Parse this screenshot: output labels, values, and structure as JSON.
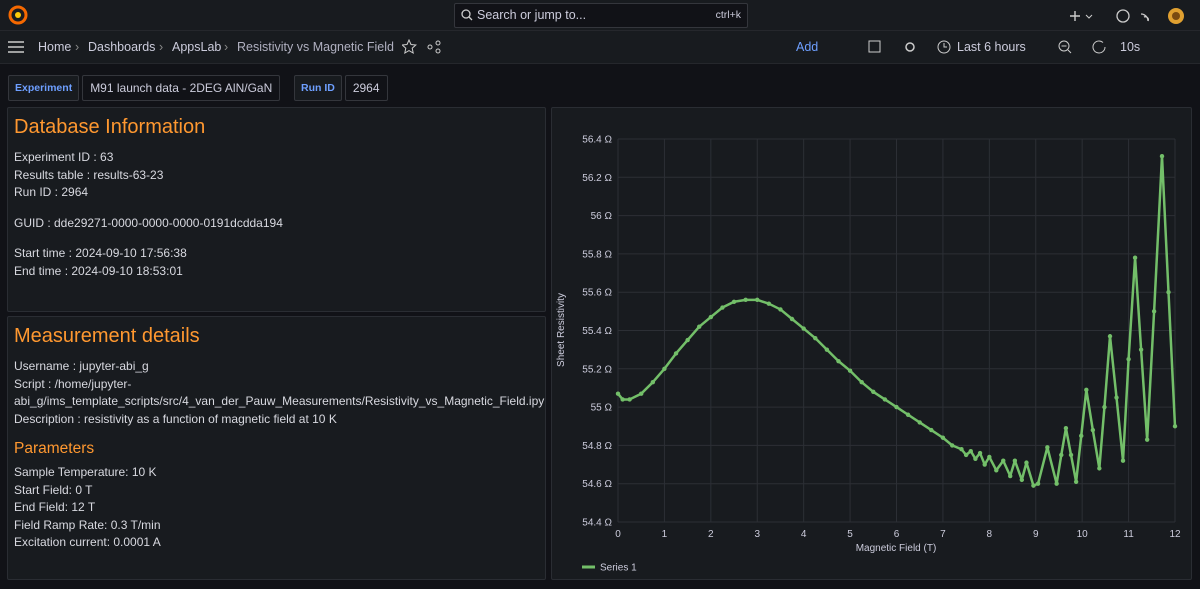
{
  "topbar": {
    "search": "Search or jump to...",
    "shortcut": "ctrl+k"
  },
  "breadcrumb": [
    "Home",
    "Dashboards",
    "AppsLab",
    "Resistivity vs Magnetic Field"
  ],
  "toolbar": {
    "add": "Add",
    "time_range": "Last 6 hours",
    "refresh": "10s"
  },
  "variables": [
    {
      "label": "Experiment",
      "value": "M91 launch data - 2DEG AlN/GaN"
    },
    {
      "label": "Run ID",
      "value": "2964"
    }
  ],
  "database_panel": {
    "title": "Database Information",
    "groups": [
      [
        "Experiment ID : 63",
        "Results table : results-63-23",
        "Run ID : 2964"
      ],
      [
        "GUID : dde29271-0000-0000-0000-0191dcdda194"
      ],
      [
        "Start time : 2024-09-10 17:56:38",
        "End time : 2024-09-10 18:53:01"
      ]
    ]
  },
  "measurement_panel": {
    "title": "Measurement details",
    "lines": [
      "Username : jupyter-abi_g",
      "Script : /home/jupyter-abi_g/ims_template_scripts/src/4_van_der_Pauw_Measurements/Resistivity_vs_Magnetic_Field.ipy",
      "Description : resistivity as a function of magnetic field at 10 K"
    ],
    "parameters_title": "Parameters",
    "parameters": [
      "Sample Temperature: 10 K",
      "Start Field: 0 T",
      "End Field: 12 T",
      "Field Ramp Rate: 0.3 T/min",
      "Excitation current: 0.0001 A"
    ]
  },
  "chart_data": {
    "type": "line",
    "x_label": "Magnetic Field (T)",
    "y_label": "Sheet Resistivity",
    "x": [
      0,
      0.1,
      0.25,
      0.5,
      0.75,
      1,
      1.25,
      1.5,
      1.75,
      2,
      2.25,
      2.5,
      2.75,
      3,
      3.25,
      3.5,
      3.75,
      4,
      4.25,
      4.5,
      4.75,
      5,
      5.25,
      5.5,
      5.75,
      6,
      6.25,
      6.5,
      6.75,
      7,
      7.2,
      7.4,
      7.5,
      7.6,
      7.7,
      7.8,
      7.9,
      8,
      8.15,
      8.3,
      8.45,
      8.55,
      8.7,
      8.8,
      8.95,
      9.05,
      9.25,
      9.45,
      9.55,
      9.65,
      9.76,
      9.87,
      9.98,
      10.09,
      10.23,
      10.37,
      10.48,
      10.6,
      10.74,
      10.88,
      11,
      11.14,
      11.27,
      11.4,
      11.55,
      11.72,
      11.86,
      12
    ],
    "series": [
      {
        "name": "Series 1",
        "color": "#73bf69",
        "values": [
          55.07,
          55.04,
          55.04,
          55.07,
          55.13,
          55.2,
          55.28,
          55.35,
          55.42,
          55.47,
          55.52,
          55.55,
          55.56,
          55.56,
          55.54,
          55.51,
          55.46,
          55.41,
          55.36,
          55.3,
          55.24,
          55.19,
          55.13,
          55.08,
          55.04,
          55.0,
          54.96,
          54.92,
          54.88,
          54.84,
          54.8,
          54.78,
          54.75,
          54.77,
          54.73,
          54.76,
          54.7,
          54.74,
          54.67,
          54.72,
          54.64,
          54.72,
          54.62,
          54.71,
          54.59,
          54.6,
          54.79,
          54.6,
          54.75,
          54.89,
          54.75,
          54.61,
          54.85,
          55.09,
          54.88,
          54.68,
          55.0,
          55.37,
          55.05,
          54.72,
          55.25,
          55.78,
          55.3,
          54.83,
          55.5,
          56.31,
          55.6,
          54.9
        ]
      }
    ],
    "xlim": [
      0,
      12
    ],
    "xticks": [
      0,
      1,
      2,
      3,
      4,
      5,
      6,
      7,
      8,
      9,
      10,
      11,
      12
    ],
    "ylim": [
      54.4,
      56.4
    ],
    "yticks": [
      {
        "value": 54.4,
        "label": "54.4 Ω"
      },
      {
        "value": 54.6,
        "label": "54.6 Ω"
      },
      {
        "value": 54.8,
        "label": "54.8 Ω"
      },
      {
        "value": 55,
        "label": "55 Ω"
      },
      {
        "value": 55.2,
        "label": "55.2 Ω"
      },
      {
        "value": 55.4,
        "label": "55.4 Ω"
      },
      {
        "value": 55.6,
        "label": "55.6 Ω"
      },
      {
        "value": 55.8,
        "label": "55.8 Ω"
      },
      {
        "value": 56,
        "label": "56 Ω"
      },
      {
        "value": 56.2,
        "label": "56.2 Ω"
      },
      {
        "value": 56.4,
        "label": "56.4 Ω"
      }
    ],
    "grid": true,
    "markers": true,
    "legend": "bottom-left"
  }
}
